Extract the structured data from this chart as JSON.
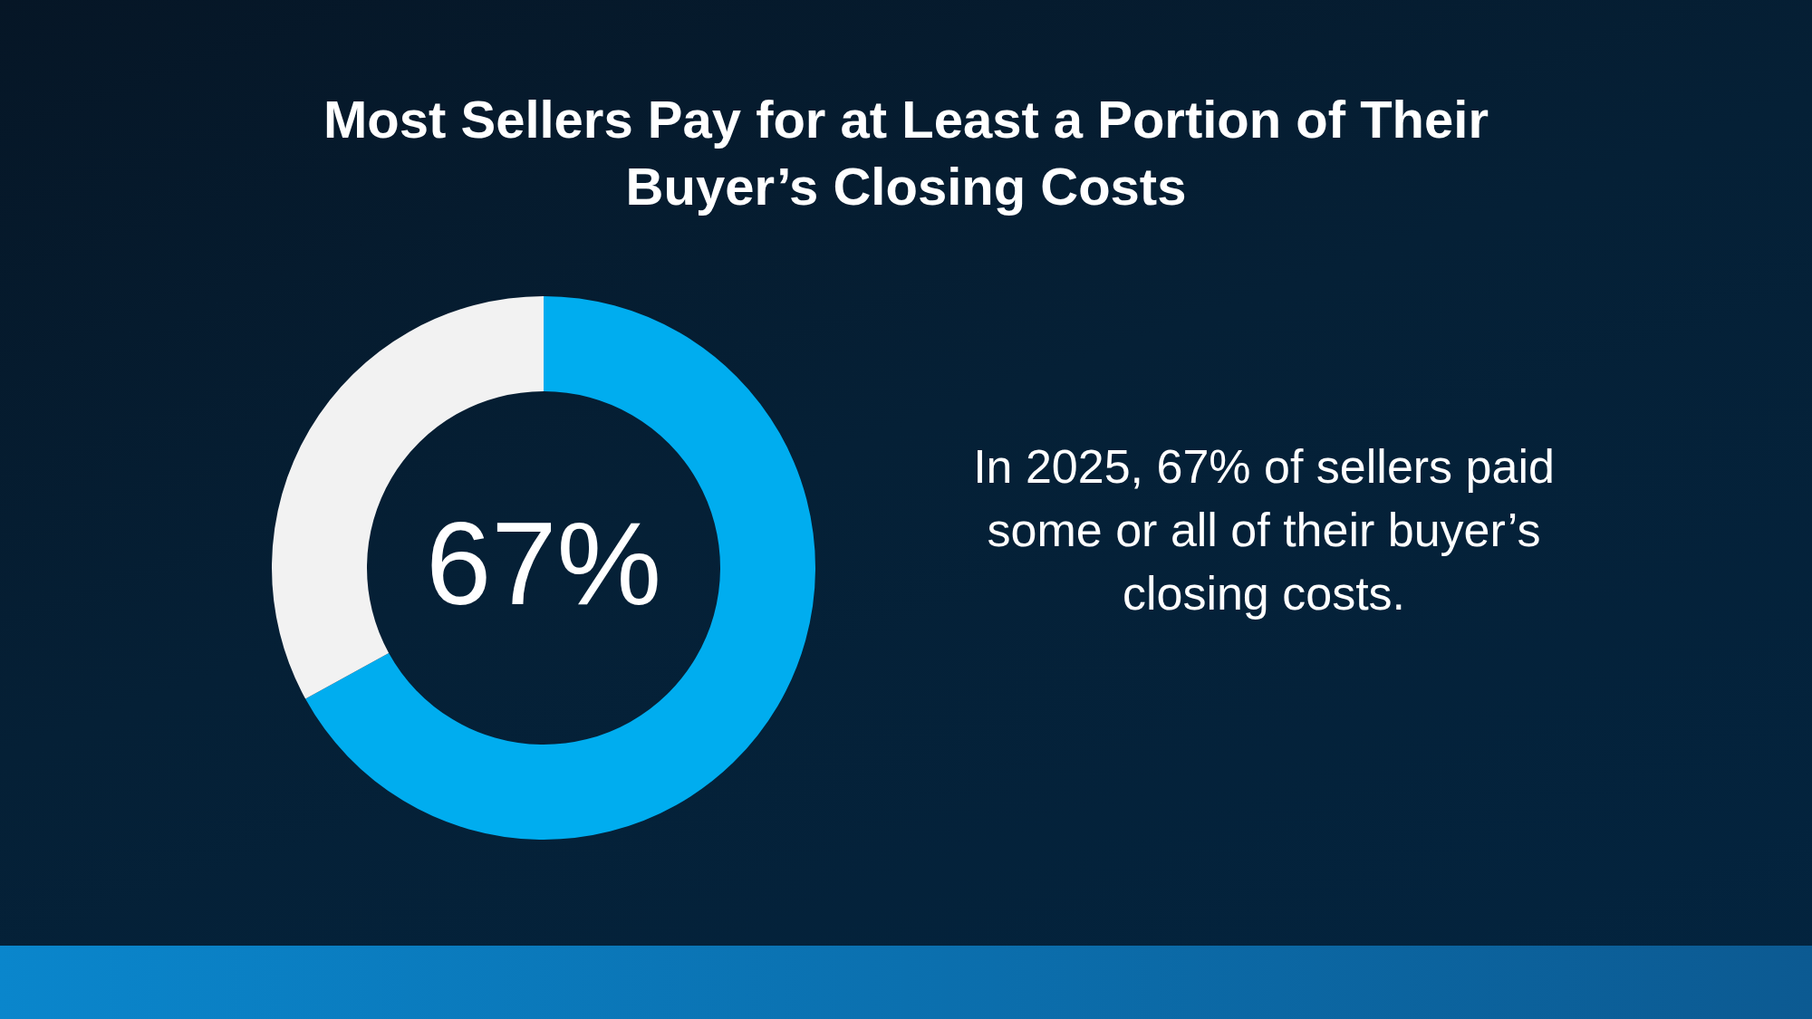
{
  "chart_data": {
    "type": "donut",
    "title": "Most Sellers Pay for at Least a Portion of Their Buyer’s Closing Costs",
    "categories": [
      null,
      null
    ],
    "values": [
      67,
      33
    ],
    "colors": [
      "#00adef",
      "#f2f2f2"
    ],
    "value_labels": [
      "67%",
      null
    ],
    "annotations": [
      "In 2025, 67% of sellers paid some or all of their buyer’s closing costs."
    ],
    "legend": false
  }
}
